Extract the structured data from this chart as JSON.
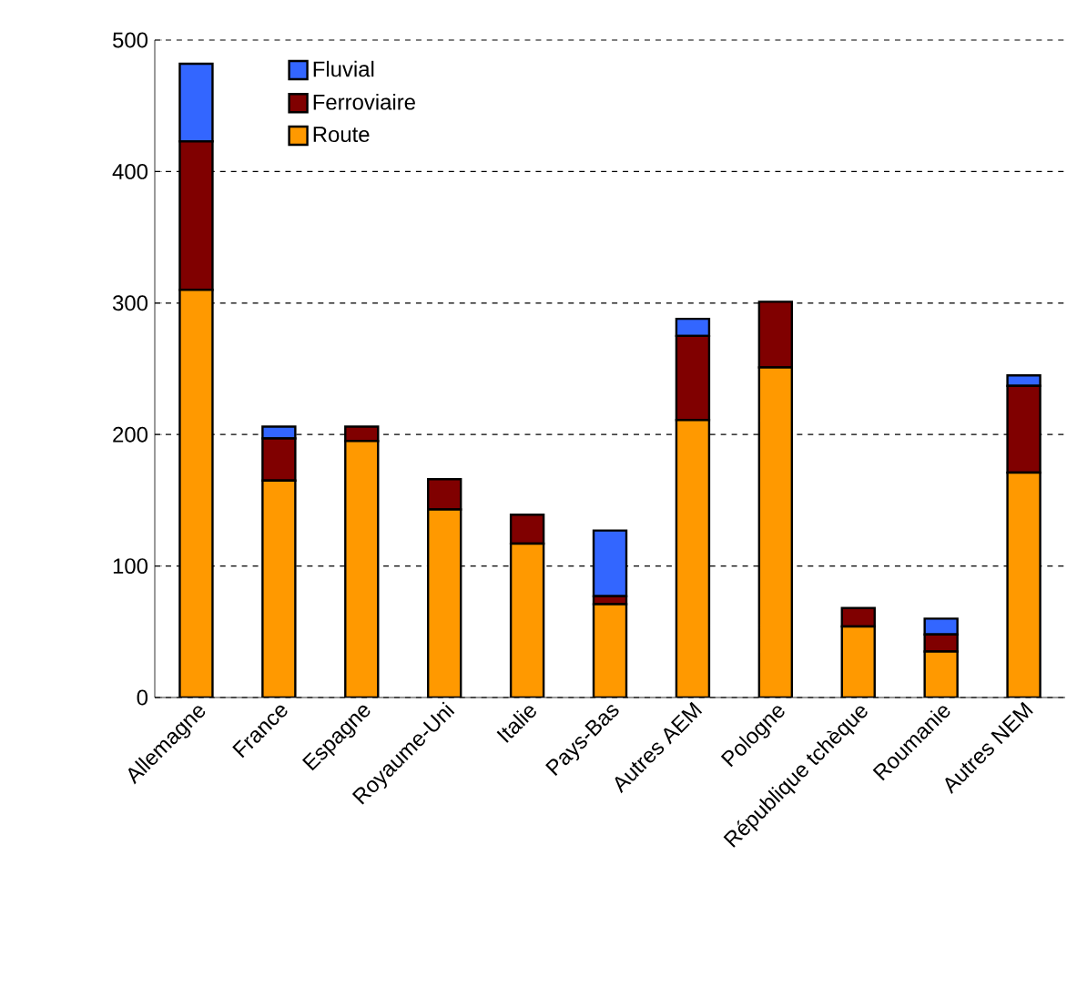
{
  "chart_data": {
    "type": "bar",
    "stacked": true,
    "categories": [
      "Allemagne",
      "France",
      "Espagne",
      "Royaume-Uni",
      "Italie",
      "Pays-Bas",
      "Autres AEM",
      "Pologne",
      "République tchèque",
      "Roumanie",
      "Autres NEM"
    ],
    "series": [
      {
        "name": "Route",
        "color": "#ff9900",
        "values": [
          310,
          165,
          195,
          143,
          117,
          71,
          211,
          251,
          54,
          35,
          171
        ]
      },
      {
        "name": "Ferroviaire",
        "color": "#800000",
        "values": [
          113,
          32,
          11,
          23,
          22,
          6,
          64,
          50,
          14,
          13,
          66
        ]
      },
      {
        "name": "Fluvial",
        "color": "#3366ff",
        "values": [
          59,
          9,
          0,
          0,
          0,
          50,
          13,
          0,
          0,
          12,
          8
        ]
      }
    ],
    "ylim": [
      0,
      500
    ],
    "yticks": [
      0,
      100,
      200,
      300,
      400,
      500
    ],
    "grid": "y",
    "legend": "top left"
  }
}
